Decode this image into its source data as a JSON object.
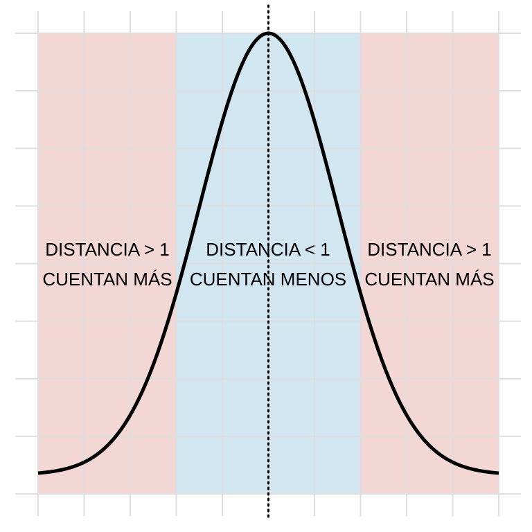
{
  "chart_data": {
    "type": "area",
    "title": "",
    "xlabel": "",
    "ylabel": "",
    "x_ticks": [
      -5,
      -4,
      -3,
      -2,
      -1,
      0,
      1,
      2,
      3,
      4,
      5
    ],
    "xlim": [
      -5,
      5
    ],
    "ylim": [
      0.0,
      0.4
    ],
    "grid": true,
    "curve": {
      "kind": "normal-density",
      "mean": 0,
      "sd": 1.5,
      "x_range": [
        -5,
        5
      ],
      "color": "#000000"
    },
    "reference_line": {
      "x": 0,
      "style": "dotted",
      "color": "#000000"
    },
    "regions": [
      {
        "x_range": [
          -5,
          -2
        ],
        "color": "#f2d7d5",
        "label_line1": "DISTANCIA > 1",
        "label_line2": "CUENTAN MÁS"
      },
      {
        "x_range": [
          -2,
          2
        ],
        "color": "#d1e6f1",
        "label_line1": "DISTANCIA < 1",
        "label_line2": "CUENTAN MENOS"
      },
      {
        "x_range": [
          2,
          5
        ],
        "color": "#f2d7d5",
        "label_line1": "DISTANCIA > 1",
        "label_line2": "CUENTAN MÁS"
      }
    ]
  }
}
